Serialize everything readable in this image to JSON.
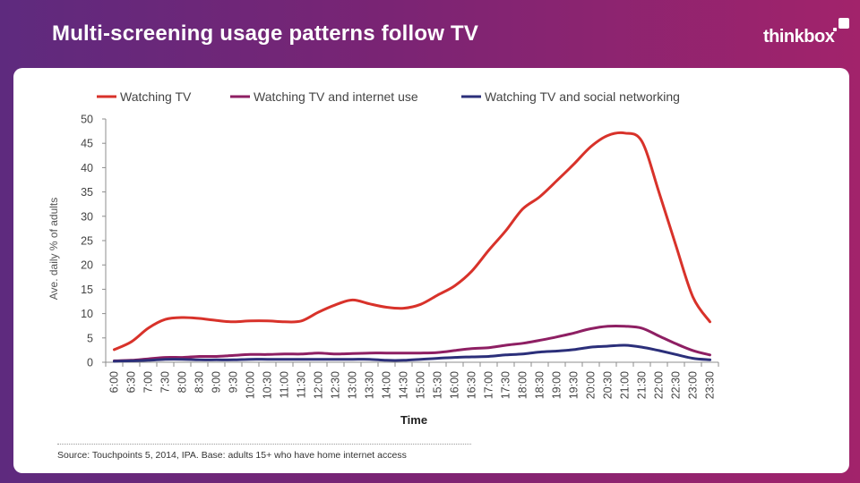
{
  "header": {
    "title": "Multi-screening usage patterns follow TV",
    "logo_text": "thinkbox"
  },
  "footer": {
    "source": "Source: Touchpoints 5, 2014, IPA.  Base: adults 15+ who have home internet access"
  },
  "chart_data": {
    "type": "line",
    "title": "",
    "xlabel": "Time",
    "ylabel": "Ave. daily % of adults",
    "ylim": [
      0,
      50
    ],
    "yticks": [
      0,
      5,
      10,
      15,
      20,
      25,
      30,
      35,
      40,
      45,
      50
    ],
    "grid": false,
    "legend": "top",
    "categories": [
      "6:00",
      "6:30",
      "7:00",
      "7:30",
      "8:00",
      "8:30",
      "9:00",
      "9:30",
      "10:00",
      "10:30",
      "11:00",
      "11:30",
      "12:00",
      "12:30",
      "13:00",
      "13:30",
      "14:00",
      "14:30",
      "15:00",
      "15:30",
      "16:00",
      "16:30",
      "17:00",
      "17:30",
      "18:00",
      "18:30",
      "19:00",
      "19:30",
      "20:00",
      "20:30",
      "21:00",
      "21:30",
      "22:00",
      "22:30",
      "23:00",
      "23:30"
    ],
    "series": [
      {
        "name": "Watching TV",
        "color": "#d8322a",
        "values": [
          2.6,
          4.2,
          7.0,
          8.8,
          9.2,
          9.0,
          8.6,
          8.3,
          8.5,
          8.5,
          8.3,
          8.5,
          10.3,
          11.8,
          12.8,
          12.0,
          11.3,
          11.1,
          11.9,
          13.8,
          15.7,
          18.7,
          23.0,
          27.0,
          31.5,
          34.0,
          37.3,
          40.7,
          44.3,
          46.6,
          47.1,
          45.4,
          35.0,
          24.0,
          13.4,
          8.3
        ]
      },
      {
        "name": "Watching TV and internet use",
        "color": "#8e1f63",
        "values": [
          0.3,
          0.4,
          0.7,
          1.0,
          1.0,
          1.2,
          1.2,
          1.4,
          1.6,
          1.6,
          1.7,
          1.7,
          1.9,
          1.7,
          1.8,
          1.9,
          1.9,
          1.9,
          1.9,
          2.0,
          2.4,
          2.8,
          3.0,
          3.5,
          3.9,
          4.5,
          5.2,
          6.0,
          6.9,
          7.4,
          7.4,
          7.0,
          5.4,
          3.8,
          2.4,
          1.5
        ]
      },
      {
        "name": "Watching TV and social networking",
        "color": "#2b2f7a",
        "values": [
          0.2,
          0.3,
          0.4,
          0.6,
          0.6,
          0.5,
          0.5,
          0.5,
          0.6,
          0.6,
          0.6,
          0.6,
          0.6,
          0.6,
          0.6,
          0.6,
          0.4,
          0.4,
          0.6,
          0.8,
          1.0,
          1.1,
          1.2,
          1.5,
          1.7,
          2.1,
          2.3,
          2.6,
          3.1,
          3.3,
          3.5,
          3.1,
          2.4,
          1.6,
          0.8,
          0.5
        ]
      }
    ]
  }
}
